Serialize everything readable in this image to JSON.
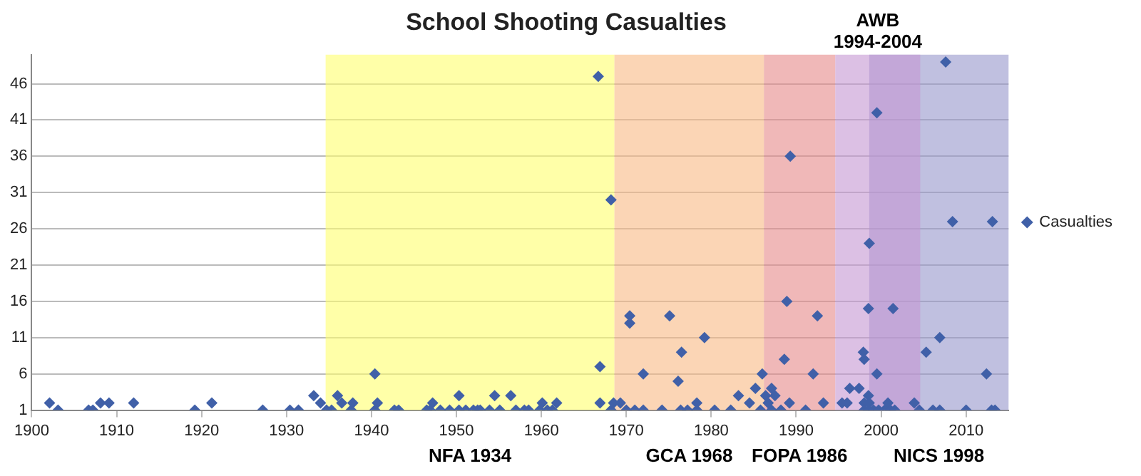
{
  "chart_data": {
    "type": "scatter",
    "title": "School Shooting Casualties",
    "xlim": [
      1900,
      2015
    ],
    "xticks": [
      1900,
      1910,
      1920,
      1930,
      1940,
      1950,
      1960,
      1970,
      1980,
      1990,
      2000,
      2010
    ],
    "ylim": [
      1,
      50
    ],
    "yticks": [
      1,
      6,
      11,
      16,
      21,
      26,
      31,
      36,
      41,
      46
    ],
    "grid": "y",
    "legend": "right",
    "marker": "diamond",
    "bands": [
      {
        "axis": "x",
        "from": 1934.6,
        "to": 1968.6,
        "label": "NFA 1934",
        "color": "#ffff6e"
      },
      {
        "axis": "x",
        "from": 1968.6,
        "to": 1986.2,
        "label": "GCA 1968",
        "color": "#f8b984"
      },
      {
        "axis": "x",
        "from": 1986.2,
        "to": 1994.6,
        "label": "FOPA 1986",
        "color": "#e68989"
      },
      {
        "axis": "x",
        "from": 1998.6,
        "to": 2015,
        "label": "NICS 1998",
        "color": "#9696cb"
      },
      {
        "axis": "x",
        "from": 1994.6,
        "to": 2004.6,
        "label": "AWB\n1994-2004",
        "color": "#c596d2"
      }
    ],
    "series": [
      {
        "name": "Casualties",
        "color": "#4060a8",
        "x": [
          1902.1,
          1903.1,
          1906.7,
          1907.2,
          1908.1,
          1909.1,
          1912,
          1919.2,
          1921.2,
          1927.2,
          1930.4,
          1931.4,
          1933.2,
          1934,
          1934.7,
          1935.3,
          1936,
          1936.5,
          1937.6,
          1937.8,
          1940.4,
          1940.7,
          1940.4,
          1942.7,
          1943.2,
          1946.5,
          1947.2,
          1946.9,
          1948.1,
          1949.2,
          1950.3,
          1950.3,
          1951.1,
          1952,
          1952.5,
          1952.8,
          1953.9,
          1954.5,
          1955.1,
          1956.4,
          1957,
          1958,
          1958.5,
          1959.8,
          1960.1,
          1960.7,
          1961.3,
          1961.8,
          1966.7,
          1968.2,
          1966.9,
          1966.9,
          1968.2,
          1968.5,
          1969.3,
          1970.4,
          1970.4,
          1970,
          1971,
          1972,
          1972,
          1974.2,
          1975.1,
          1976.1,
          1976.5,
          1976.4,
          1977.2,
          1978.3,
          1978.3,
          1979.2,
          1980.4,
          1982.3,
          1983.2,
          1984.5,
          1985.2,
          1986,
          1985.8,
          1986.4,
          1986.7,
          1987.1,
          1987.5,
          1987.1,
          1988.2,
          1988.6,
          1988.9,
          1989.3,
          1989.2,
          1991.1,
          1992,
          1992.5,
          1993.2,
          1995.4,
          1996,
          1996.3,
          2007.6,
          1999.5,
          2008.4,
          2013.1,
          1998.6,
          1998.5,
          2001.4,
          2006.9,
          2005.3,
          1997.9,
          1998,
          1999.5,
          2012.4,
          1997.4,
          1998.5,
          1998,
          1998.6,
          2000.8,
          2003.9,
          1998,
          1998.5,
          1999.1,
          1999.7,
          2000.4,
          2001.1,
          2001.6,
          2004.5,
          2006.1,
          2006.9,
          2010,
          2013,
          2013.4
        ],
        "values": [
          2,
          1,
          1,
          1,
          2,
          2,
          2,
          1,
          2,
          1,
          1,
          1,
          3,
          2,
          1,
          1,
          3,
          2,
          1,
          2,
          6,
          2,
          1,
          1,
          1,
          1,
          2,
          1,
          1,
          1,
          3,
          1,
          1,
          1,
          1,
          1,
          1,
          3,
          1,
          3,
          1,
          1,
          1,
          1,
          2,
          1,
          1,
          2,
          47,
          30,
          7,
          2,
          1,
          2,
          2,
          14,
          13,
          1,
          1,
          1,
          6,
          1,
          14,
          5,
          9,
          1,
          1,
          2,
          1,
          11,
          1,
          1,
          3,
          2,
          4,
          6,
          1,
          3,
          2,
          4,
          3,
          1,
          1,
          8,
          16,
          36,
          2,
          1,
          6,
          14,
          2,
          2,
          2,
          4,
          49,
          42,
          27,
          27,
          24,
          15,
          15,
          11,
          9,
          9,
          8,
          6,
          6,
          4,
          3,
          2,
          2,
          2,
          2,
          1,
          1,
          1,
          1,
          1,
          1,
          1,
          1,
          1,
          1,
          1,
          1,
          1
        ]
      }
    ]
  }
}
